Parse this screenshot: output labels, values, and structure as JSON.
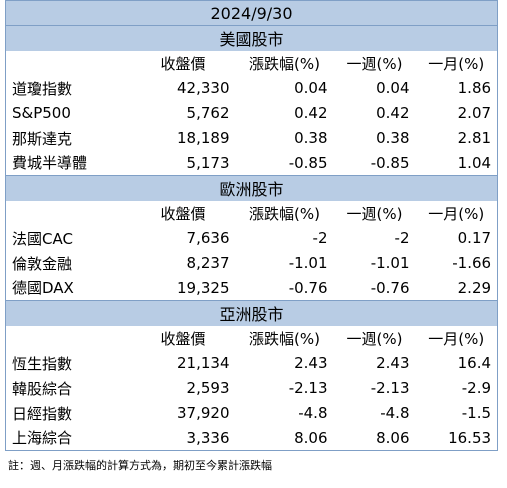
{
  "title": "2024/9/30",
  "sections": [
    {
      "title": "美國股市",
      "headers": [
        "收盤價",
        "漲跌幅(%)",
        "一週(%)",
        "一月(%)"
      ],
      "rows": [
        [
          "道瓊指數",
          "42,330",
          "0.04",
          "0.04",
          "1.86"
        ],
        [
          "S&P500",
          "5,762",
          "0.42",
          "0.42",
          "2.07"
        ],
        [
          "那斯達克",
          "18,189",
          "0.38",
          "0.38",
          "2.81"
        ],
        [
          "費城半導體",
          "5,173",
          "-0.85",
          "-0.85",
          "1.04"
        ]
      ]
    },
    {
      "title": "歐洲股市",
      "headers": [
        "收盤價",
        "漲跌幅(%)",
        "一週(%)",
        "一月(%)"
      ],
      "rows": [
        [
          "法國CAC",
          "7,636",
          "-2",
          "-2",
          "0.17"
        ],
        [
          "倫敦金融",
          "8,237",
          "-1.01",
          "-1.01",
          "-1.66"
        ],
        [
          "德國DAX",
          "19,325",
          "-0.76",
          "-0.76",
          "2.29"
        ]
      ]
    },
    {
      "title": "亞洲股市",
      "headers": [
        "收盤價",
        "漲跌幅(%)",
        "一週(%)",
        "一月(%)"
      ],
      "rows": [
        [
          "恆生指數",
          "21,134",
          "2.43",
          "2.43",
          "16.4"
        ],
        [
          "韓股綜合",
          "2,593",
          "-2.13",
          "-2.13",
          "-2.9"
        ],
        [
          "日經指數",
          "37,920",
          "-4.8",
          "-4.8",
          "-1.5"
        ],
        [
          "上海綜合",
          "3,336",
          "8.06",
          "8.06",
          "16.53"
        ]
      ]
    }
  ],
  "note": "註：週、月漲跌幅的計算方式為，期初至今累計漲跌幅"
}
